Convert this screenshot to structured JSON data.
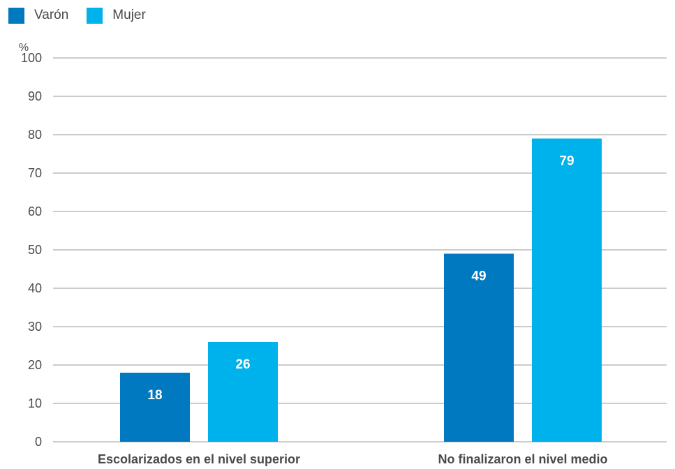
{
  "chart_data": {
    "type": "bar",
    "unit_label": "%",
    "categories": [
      "Escolarizados en el nivel superior",
      "No finalizaron el nivel medio"
    ],
    "series": [
      {
        "name": "Varón",
        "color": "#0079c1",
        "values": [
          18,
          49
        ]
      },
      {
        "name": "Mujer",
        "color": "#00b2eb",
        "values": [
          26,
          79
        ]
      }
    ],
    "ylim": [
      0,
      100
    ],
    "yticks": [
      0,
      10,
      20,
      30,
      40,
      50,
      60,
      70,
      80,
      90,
      100
    ],
    "grid": true,
    "legend_position": "top-left",
    "gridline_color": "#9a9a9a"
  }
}
